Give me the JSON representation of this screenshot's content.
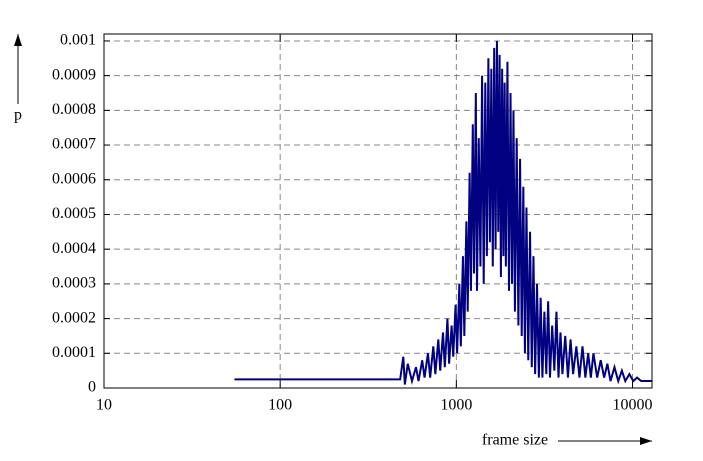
{
  "chart_data": {
    "type": "line",
    "x_label": "frame size",
    "y_label": "p",
    "log_x": true,
    "grid": true,
    "color": "#000080",
    "xlim": [
      10,
      12900
    ],
    "xticks": [
      10,
      100,
      1000,
      10000
    ],
    "ylim": [
      0,
      0.00102
    ],
    "yticks": [
      0,
      0.0001,
      0.0002,
      0.0003,
      0.0004,
      0.0005,
      0.0006,
      0.0007,
      0.0008,
      0.0009,
      0.001
    ],
    "x": [
      55,
      480,
      500,
      510,
      530,
      560,
      590,
      610,
      640,
      660,
      690,
      710,
      740,
      760,
      790,
      810,
      840,
      860,
      890,
      910,
      940,
      960,
      990,
      1010,
      1040,
      1060,
      1090,
      1110,
      1140,
      1160,
      1190,
      1210,
      1240,
      1260,
      1290,
      1310,
      1340,
      1370,
      1400,
      1430,
      1460,
      1490,
      1520,
      1550,
      1580,
      1610,
      1640,
      1670,
      1700,
      1730,
      1760,
      1790,
      1820,
      1850,
      1880,
      1910,
      1950,
      1990,
      2030,
      2070,
      2110,
      2150,
      2200,
      2250,
      2300,
      2350,
      2400,
      2450,
      2500,
      2560,
      2620,
      2680,
      2740,
      2800,
      2870,
      2940,
      3010,
      3080,
      3160,
      3240,
      3320,
      3400,
      3500,
      3600,
      3700,
      3800,
      3900,
      4000,
      4150,
      4300,
      4450,
      4600,
      4800,
      5000,
      5200,
      5400,
      5600,
      5800,
      6000,
      6300,
      6600,
      6900,
      7200,
      7500,
      7900,
      8300,
      8700,
      9100,
      9600,
      10100,
      10600,
      11200,
      12000,
      12900
    ],
    "values": [
      2.5e-05,
      2.5e-05,
      9e-05,
      1e-05,
      7e-05,
      2e-05,
      6e-05,
      2e-05,
      8e-05,
      3e-05,
      0.0001,
      3e-05,
      0.00012,
      4e-05,
      0.00014,
      5e-05,
      0.00016,
      6e-05,
      0.0002,
      7e-05,
      0.00018,
      9e-05,
      0.00024,
      0.0001,
      0.0003,
      0.00012,
      0.00038,
      0.00015,
      0.00048,
      0.00022,
      0.00062,
      0.00028,
      0.00076,
      0.00033,
      0.00085,
      0.00028,
      0.00072,
      0.00035,
      0.0009,
      0.0003,
      0.00088,
      0.00038,
      0.00095,
      0.00042,
      0.00092,
      0.00035,
      0.00098,
      0.0004,
      0.001,
      0.00045,
      0.00096,
      0.00032,
      0.00092,
      0.00038,
      0.00088,
      0.00035,
      0.00094,
      0.00028,
      0.00085,
      0.0003,
      0.0008,
      0.00022,
      0.00072,
      0.00018,
      0.00066,
      0.00015,
      0.00058,
      0.0001,
      0.00052,
      8e-05,
      0.00045,
      6e-05,
      0.00038,
      4e-05,
      0.0003,
      3e-05,
      0.00026,
      3e-05,
      0.00022,
      4e-05,
      0.00025,
      3e-05,
      0.00018,
      5e-05,
      0.00022,
      3e-05,
      0.00016,
      4e-05,
      0.00015,
      3e-05,
      0.00014,
      4e-05,
      0.00012,
      3e-05,
      0.00012,
      3e-05,
      0.0001,
      3e-05,
      0.0001,
      3e-05,
      8e-05,
      3e-05,
      7e-05,
      2e-05,
      6e-05,
      2e-05,
      5e-05,
      2e-05,
      4e-05,
      2e-05,
      3e-05,
      2e-05,
      2e-05,
      2e-05
    ]
  }
}
